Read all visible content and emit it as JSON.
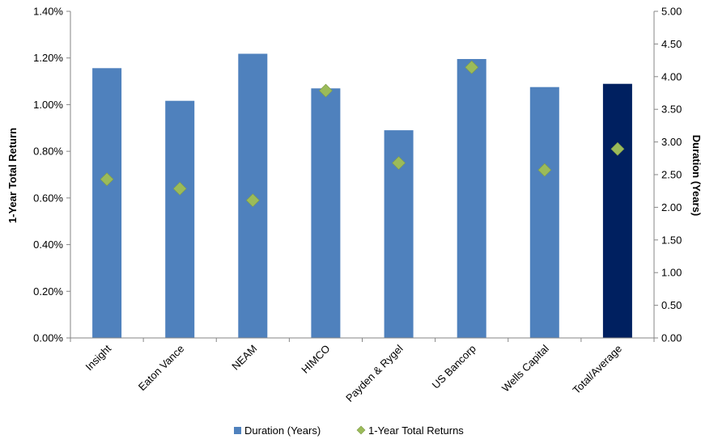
{
  "chart_data": {
    "type": "bar",
    "categories": [
      "Insight",
      "Eaton Vance",
      "NEAM",
      "HIMCO",
      "Payden & Rygel",
      "US Bancorp",
      "Wells Capital",
      "Total/Average"
    ],
    "series": [
      {
        "name": "Duration (Years)",
        "kind": "bar",
        "axis": "right",
        "values": [
          4.13,
          3.63,
          4.35,
          3.82,
          3.18,
          4.27,
          3.84,
          3.89
        ],
        "color": "#4f81bd",
        "highlight_color": "#002060",
        "highlight_category": "Total/Average"
      },
      {
        "name": "1-Year Total Returns",
        "kind": "marker",
        "marker": "diamond",
        "axis": "left",
        "values": [
          0.68,
          0.64,
          0.59,
          1.06,
          0.75,
          1.16,
          0.72,
          0.81
        ],
        "color": "#9bbb59"
      }
    ],
    "y_left": {
      "label": "1-Year Total Return",
      "range": [
        0,
        1.4
      ],
      "ticks": [
        "0.00%",
        "0.20%",
        "0.40%",
        "0.60%",
        "0.80%",
        "1.00%",
        "1.20%",
        "1.40%"
      ]
    },
    "y_right": {
      "label": "Duration (Years)",
      "range": [
        0,
        5
      ],
      "ticks": [
        "0.00",
        "0.50",
        "1.00",
        "1.50",
        "2.00",
        "2.50",
        "3.00",
        "3.50",
        "4.00",
        "4.50",
        "5.00"
      ]
    },
    "grid": false,
    "legend": "bottom-center"
  }
}
